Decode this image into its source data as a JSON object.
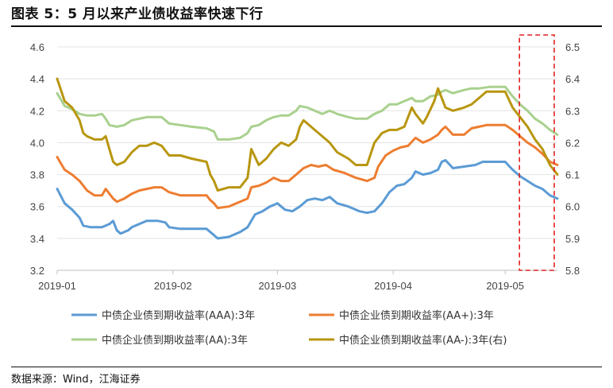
{
  "title": "图表 5：5 月以来产业债收益率快速下行",
  "source": "数据来源：Wind，江海证券",
  "chart_data": {
    "type": "line",
    "left_axis": {
      "ylim": [
        3.2,
        4.6
      ],
      "ticks": [
        "3.2",
        "3.4",
        "3.6",
        "3.8",
        "4.0",
        "4.2",
        "4.4",
        "4.6"
      ]
    },
    "right_axis": {
      "ylim": [
        5.8,
        6.5
      ],
      "ticks": [
        "5.8",
        "5.9",
        "6.0",
        "6.1",
        "6.2",
        "6.3",
        "6.4",
        "6.5"
      ]
    },
    "x_ticks": [
      "2019-01",
      "2019-02",
      "2019-03",
      "2019-04",
      "2019-05"
    ],
    "x_tick_days": [
      0,
      31,
      59,
      90,
      120
    ],
    "x_range_days": [
      0,
      134
    ],
    "grid": "horizontal",
    "legend_position": "bottom",
    "highlight_box": {
      "x_days": [
        120,
        134
      ],
      "style": "red-dashed"
    },
    "series": [
      {
        "name": "中债企业债到期收益率(AAA):3年",
        "color": "#5B9BD5",
        "axis": "left",
        "points": [
          [
            0,
            3.71
          ],
          [
            2,
            3.62
          ],
          [
            4,
            3.58
          ],
          [
            6,
            3.53
          ],
          [
            7,
            3.48
          ],
          [
            9,
            3.47
          ],
          [
            12,
            3.47
          ],
          [
            14,
            3.49
          ],
          [
            15,
            3.51
          ],
          [
            16,
            3.45
          ],
          [
            17,
            3.43
          ],
          [
            19,
            3.45
          ],
          [
            20,
            3.47
          ],
          [
            22,
            3.49
          ],
          [
            24,
            3.51
          ],
          [
            27,
            3.51
          ],
          [
            29,
            3.5
          ],
          [
            30,
            3.47
          ],
          [
            33,
            3.46
          ],
          [
            36,
            3.46
          ],
          [
            40,
            3.46
          ],
          [
            41,
            3.44
          ],
          [
            42,
            3.42
          ],
          [
            43,
            3.4
          ],
          [
            46,
            3.41
          ],
          [
            49,
            3.44
          ],
          [
            51,
            3.47
          ],
          [
            53,
            3.55
          ],
          [
            55,
            3.57
          ],
          [
            57,
            3.6
          ],
          [
            59,
            3.62
          ],
          [
            61,
            3.58
          ],
          [
            63,
            3.57
          ],
          [
            65,
            3.6
          ],
          [
            67,
            3.64
          ],
          [
            69,
            3.65
          ],
          [
            71,
            3.64
          ],
          [
            73,
            3.66
          ],
          [
            75,
            3.62
          ],
          [
            78,
            3.6
          ],
          [
            81,
            3.57
          ],
          [
            83,
            3.56
          ],
          [
            85,
            3.57
          ],
          [
            87,
            3.62
          ],
          [
            89,
            3.69
          ],
          [
            91,
            3.73
          ],
          [
            93,
            3.74
          ],
          [
            95,
            3.78
          ],
          [
            96,
            3.82
          ],
          [
            98,
            3.8
          ],
          [
            100,
            3.81
          ],
          [
            102,
            3.83
          ],
          [
            103,
            3.88
          ],
          [
            104,
            3.89
          ],
          [
            106,
            3.84
          ],
          [
            109,
            3.85
          ],
          [
            112,
            3.86
          ],
          [
            114,
            3.88
          ],
          [
            117,
            3.88
          ],
          [
            120,
            3.88
          ],
          [
            122,
            3.83
          ],
          [
            124,
            3.79
          ],
          [
            126,
            3.76
          ],
          [
            128,
            3.73
          ],
          [
            130,
            3.71
          ],
          [
            132,
            3.67
          ],
          [
            134,
            3.65
          ]
        ]
      },
      {
        "name": "中债企业债到期收益率(AA+):3年",
        "color": "#ED7D31",
        "axis": "left",
        "points": [
          [
            0,
            3.91
          ],
          [
            2,
            3.83
          ],
          [
            4,
            3.8
          ],
          [
            6,
            3.76
          ],
          [
            8,
            3.7
          ],
          [
            10,
            3.67
          ],
          [
            12,
            3.67
          ],
          [
            13,
            3.71
          ],
          [
            14,
            3.68
          ],
          [
            15,
            3.65
          ],
          [
            16,
            3.63
          ],
          [
            18,
            3.65
          ],
          [
            20,
            3.68
          ],
          [
            22,
            3.7
          ],
          [
            24,
            3.71
          ],
          [
            26,
            3.72
          ],
          [
            28,
            3.72
          ],
          [
            30,
            3.69
          ],
          [
            33,
            3.67
          ],
          [
            36,
            3.67
          ],
          [
            40,
            3.67
          ],
          [
            41,
            3.64
          ],
          [
            42,
            3.62
          ],
          [
            43,
            3.59
          ],
          [
            46,
            3.6
          ],
          [
            49,
            3.63
          ],
          [
            51,
            3.65
          ],
          [
            52,
            3.72
          ],
          [
            54,
            3.73
          ],
          [
            56,
            3.75
          ],
          [
            58,
            3.78
          ],
          [
            60,
            3.76
          ],
          [
            62,
            3.76
          ],
          [
            64,
            3.8
          ],
          [
            66,
            3.84
          ],
          [
            68,
            3.86
          ],
          [
            70,
            3.85
          ],
          [
            72,
            3.86
          ],
          [
            74,
            3.83
          ],
          [
            77,
            3.81
          ],
          [
            80,
            3.78
          ],
          [
            83,
            3.76
          ],
          [
            85,
            3.78
          ],
          [
            86,
            3.85
          ],
          [
            88,
            3.92
          ],
          [
            90,
            3.95
          ],
          [
            92,
            3.97
          ],
          [
            94,
            3.98
          ],
          [
            96,
            4.03
          ],
          [
            98,
            4.0
          ],
          [
            100,
            4.02
          ],
          [
            102,
            4.05
          ],
          [
            103,
            4.08
          ],
          [
            104,
            4.1
          ],
          [
            106,
            4.05
          ],
          [
            109,
            4.05
          ],
          [
            111,
            4.09
          ],
          [
            113,
            4.1
          ],
          [
            115,
            4.11
          ],
          [
            120,
            4.11
          ],
          [
            122,
            4.08
          ],
          [
            124,
            4.04
          ],
          [
            126,
            4.0
          ],
          [
            128,
            3.97
          ],
          [
            130,
            3.93
          ],
          [
            132,
            3.88
          ],
          [
            134,
            3.86
          ]
        ]
      },
      {
        "name": "中债企业债到期收益率(AA):3年",
        "color": "#A9D18E",
        "axis": "left",
        "points": [
          [
            0,
            4.31
          ],
          [
            2,
            4.23
          ],
          [
            4,
            4.21
          ],
          [
            6,
            4.18
          ],
          [
            8,
            4.17
          ],
          [
            10,
            4.17
          ],
          [
            12,
            4.18
          ],
          [
            13,
            4.15
          ],
          [
            14,
            4.11
          ],
          [
            16,
            4.1
          ],
          [
            18,
            4.11
          ],
          [
            20,
            4.14
          ],
          [
            22,
            4.15
          ],
          [
            24,
            4.16
          ],
          [
            28,
            4.16
          ],
          [
            30,
            4.12
          ],
          [
            33,
            4.11
          ],
          [
            36,
            4.1
          ],
          [
            40,
            4.09
          ],
          [
            42,
            4.07
          ],
          [
            43,
            4.02
          ],
          [
            46,
            4.02
          ],
          [
            49,
            4.03
          ],
          [
            51,
            4.06
          ],
          [
            52,
            4.1
          ],
          [
            54,
            4.11
          ],
          [
            56,
            4.14
          ],
          [
            58,
            4.16
          ],
          [
            60,
            4.17
          ],
          [
            62,
            4.17
          ],
          [
            64,
            4.2
          ],
          [
            65,
            4.23
          ],
          [
            67,
            4.22
          ],
          [
            68,
            4.21
          ],
          [
            70,
            4.19
          ],
          [
            71,
            4.18
          ],
          [
            73,
            4.2
          ],
          [
            75,
            4.18
          ],
          [
            78,
            4.16
          ],
          [
            80,
            4.15
          ],
          [
            83,
            4.15
          ],
          [
            85,
            4.18
          ],
          [
            87,
            4.2
          ],
          [
            89,
            4.24
          ],
          [
            91,
            4.24
          ],
          [
            93,
            4.26
          ],
          [
            95,
            4.28
          ],
          [
            96,
            4.26
          ],
          [
            98,
            4.26
          ],
          [
            100,
            4.29
          ],
          [
            102,
            4.3
          ],
          [
            103,
            4.32
          ],
          [
            104,
            4.33
          ],
          [
            106,
            4.31
          ],
          [
            109,
            4.33
          ],
          [
            111,
            4.34
          ],
          [
            113,
            4.34
          ],
          [
            116,
            4.35
          ],
          [
            120,
            4.35
          ],
          [
            122,
            4.29
          ],
          [
            124,
            4.24
          ],
          [
            126,
            4.2
          ],
          [
            128,
            4.15
          ],
          [
            130,
            4.12
          ],
          [
            132,
            4.08
          ],
          [
            134,
            4.05
          ]
        ]
      },
      {
        "name": "中债企业债到期收益率(AA-):3年(右)",
        "color": "#B8960F",
        "axis": "right",
        "points": [
          [
            0,
            6.4
          ],
          [
            2,
            6.33
          ],
          [
            4,
            6.31
          ],
          [
            6,
            6.27
          ],
          [
            7,
            6.23
          ],
          [
            8,
            6.22
          ],
          [
            10,
            6.21
          ],
          [
            12,
            6.21
          ],
          [
            13,
            6.22
          ],
          [
            14,
            6.18
          ],
          [
            15,
            6.14
          ],
          [
            16,
            6.13
          ],
          [
            18,
            6.14
          ],
          [
            20,
            6.17
          ],
          [
            22,
            6.19
          ],
          [
            24,
            6.19
          ],
          [
            26,
            6.2
          ],
          [
            28,
            6.19
          ],
          [
            30,
            6.16
          ],
          [
            33,
            6.16
          ],
          [
            36,
            6.15
          ],
          [
            40,
            6.14
          ],
          [
            41,
            6.1
          ],
          [
            42,
            6.08
          ],
          [
            43,
            6.05
          ],
          [
            46,
            6.06
          ],
          [
            49,
            6.06
          ],
          [
            51,
            6.09
          ],
          [
            52,
            6.18
          ],
          [
            54,
            6.13
          ],
          [
            56,
            6.15
          ],
          [
            58,
            6.18
          ],
          [
            60,
            6.2
          ],
          [
            62,
            6.19
          ],
          [
            64,
            6.21
          ],
          [
            65,
            6.25
          ],
          [
            66,
            6.27
          ],
          [
            67,
            6.26
          ],
          [
            68,
            6.25
          ],
          [
            70,
            6.23
          ],
          [
            71,
            6.22
          ],
          [
            73,
            6.2
          ],
          [
            75,
            6.17
          ],
          [
            78,
            6.15
          ],
          [
            80,
            6.13
          ],
          [
            83,
            6.13
          ],
          [
            85,
            6.2
          ],
          [
            87,
            6.23
          ],
          [
            89,
            6.24
          ],
          [
            91,
            6.24
          ],
          [
            93,
            6.25
          ],
          [
            95,
            6.31
          ],
          [
            96,
            6.29
          ],
          [
            98,
            6.26
          ],
          [
            99,
            6.28
          ],
          [
            101,
            6.33
          ],
          [
            102,
            6.37
          ],
          [
            103,
            6.34
          ],
          [
            104,
            6.31
          ],
          [
            106,
            6.3
          ],
          [
            109,
            6.31
          ],
          [
            111,
            6.32
          ],
          [
            113,
            6.34
          ],
          [
            115,
            6.36
          ],
          [
            120,
            6.36
          ],
          [
            122,
            6.31
          ],
          [
            124,
            6.28
          ],
          [
            126,
            6.25
          ],
          [
            128,
            6.21
          ],
          [
            130,
            6.18
          ],
          [
            132,
            6.13
          ],
          [
            134,
            6.1
          ]
        ]
      }
    ]
  }
}
